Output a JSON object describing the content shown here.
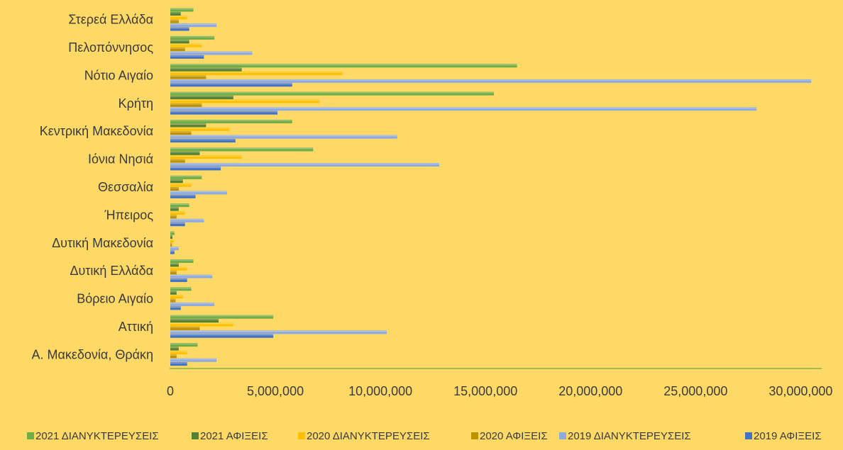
{
  "chart_data": {
    "type": "bar",
    "orientation": "horizontal",
    "categories": [
      "Στερεά Ελλάδα",
      "Πελοπόννησος",
      "Νότιο Αιγαίο",
      "Κρήτη",
      "Κεντρική Μακεδονία",
      "Ιόνια Νησιά",
      "Θεσσαλία",
      "Ήπειρος",
      "Δυτική Μακεδονία",
      "Δυτική Ελλάδα",
      "Βόρειο Αιγαίο",
      "Αττική",
      "Α. Μακεδονία, Θράκη"
    ],
    "series": [
      {
        "name": "2021 ΔΙΑΝΥΚΤΕΡΕΥΣΕΙΣ",
        "color": "#70AD47",
        "values": [
          1100000,
          2100000,
          16500000,
          15400000,
          5800000,
          6800000,
          1500000,
          900000,
          200000,
          1100000,
          1000000,
          4900000,
          1300000
        ]
      },
      {
        "name": "2021 ΑΦΙΞΕΙΣ",
        "color": "#548235",
        "values": [
          500000,
          900000,
          3400000,
          3000000,
          1700000,
          1400000,
          600000,
          400000,
          100000,
          400000,
          300000,
          2300000,
          400000
        ]
      },
      {
        "name": "2020 ΔΙΑΝΥΚΤΕΡΕΥΣΕΙΣ",
        "color": "#FFC000",
        "values": [
          800000,
          1500000,
          8200000,
          7100000,
          2800000,
          3400000,
          1000000,
          700000,
          150000,
          800000,
          600000,
          3000000,
          800000
        ]
      },
      {
        "name": "2020 ΑΦΙΞΕΙΣ",
        "color": "#BF9000",
        "values": [
          400000,
          700000,
          1700000,
          1500000,
          1000000,
          700000,
          400000,
          300000,
          80000,
          300000,
          250000,
          1400000,
          300000
        ]
      },
      {
        "name": "2019 ΔΙΑΝΥΚΤΕΡΕΥΣΕΙΣ",
        "color": "#8FAADC",
        "values": [
          2200000,
          3900000,
          30500000,
          27900000,
          10800000,
          12800000,
          2700000,
          1600000,
          400000,
          2000000,
          2100000,
          10300000,
          2200000
        ]
      },
      {
        "name": "2019 ΑΦΙΞΕΙΣ",
        "color": "#4472C4",
        "values": [
          900000,
          1600000,
          5800000,
          5100000,
          3100000,
          2400000,
          1200000,
          700000,
          200000,
          800000,
          500000,
          4900000,
          800000
        ]
      }
    ],
    "x_ticks": [
      "0",
      "5,000,000",
      "10,000,000",
      "15,000,000",
      "20,000,000",
      "25,000,000",
      "30,000,000"
    ],
    "x_tick_values": [
      0,
      5000000,
      10000000,
      15000000,
      20000000,
      25000000,
      30000000
    ],
    "xlim": [
      0,
      31000000
    ],
    "grid": false,
    "legend_position": "bottom",
    "title": "",
    "xlabel": "",
    "ylabel": ""
  },
  "colors": {
    "background": "#FFD966",
    "axis_line": "#70AD47",
    "text": "#3A3A3A"
  }
}
